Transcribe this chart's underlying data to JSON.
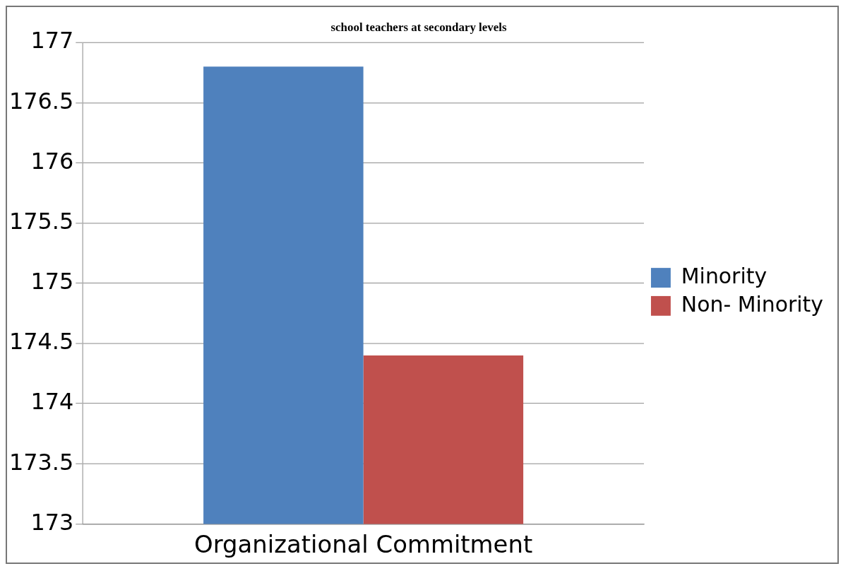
{
  "chart_data": {
    "type": "bar",
    "title": "school teachers at secondary levels",
    "categories": [
      "Organizational Commitment"
    ],
    "series": [
      {
        "name": "Minority",
        "color": "#4f81bd",
        "values": [
          176.8
        ]
      },
      {
        "name": "Non- Minority",
        "color": "#c0504d",
        "values": [
          174.4
        ]
      }
    ],
    "ylim": [
      173,
      177
    ],
    "yticks": [
      173,
      173.5,
      174,
      174.5,
      175,
      175.5,
      176,
      176.5,
      177
    ],
    "grid": "y",
    "legend": "right"
  }
}
